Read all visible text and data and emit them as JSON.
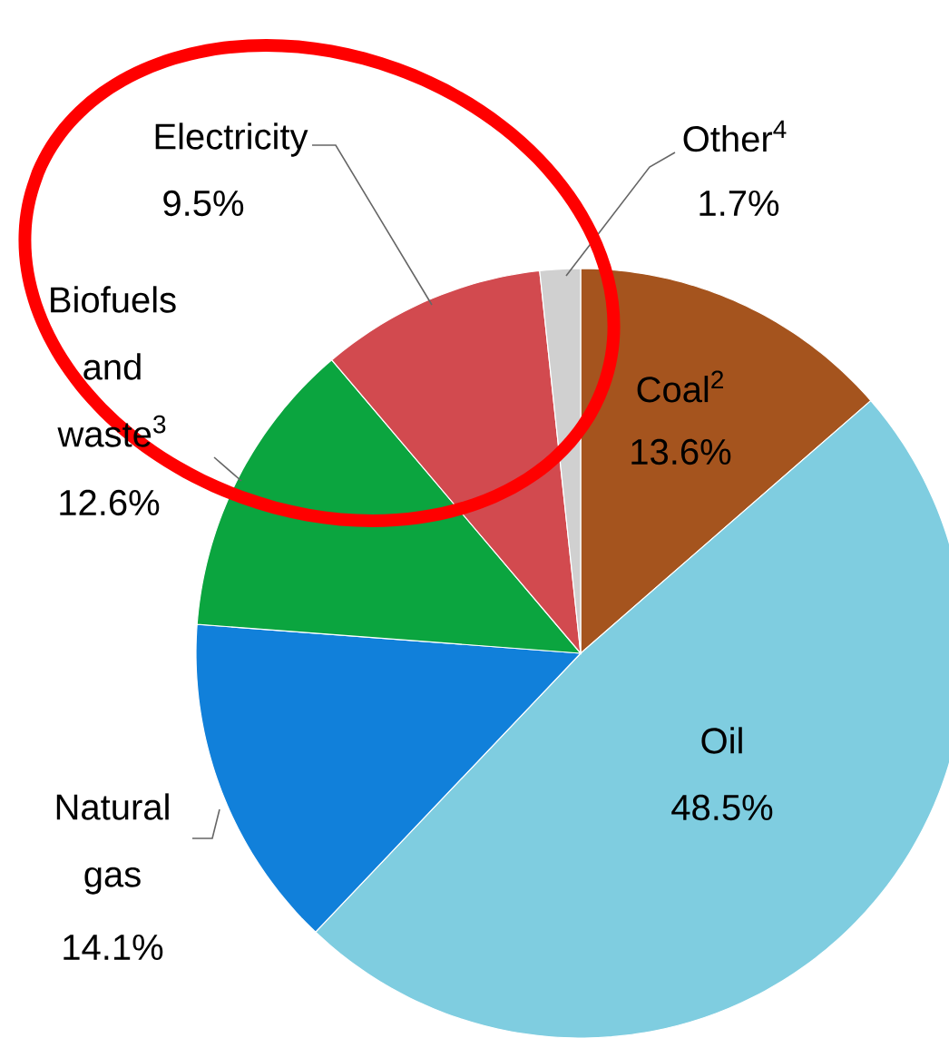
{
  "chart_data": {
    "type": "pie",
    "categories": [
      "Coal$^{2}$",
      "Oil",
      "Natural gas",
      "Biofuels and waste$^{3}$",
      "Electricity",
      "Other$^{4}$"
    ],
    "values": [
      13.6,
      48.5,
      14.1,
      12.6,
      9.5,
      1.7
    ],
    "value_labels": [
      "13.6%",
      "48.5%",
      "14.1%",
      "12.6%",
      "9.5%",
      "1.7%"
    ],
    "colors": [
      "#a5541e",
      "#7fcde0",
      "#1180da",
      "#0ba53f",
      "#d24a4f",
      "#d0d0d0"
    ]
  }
}
